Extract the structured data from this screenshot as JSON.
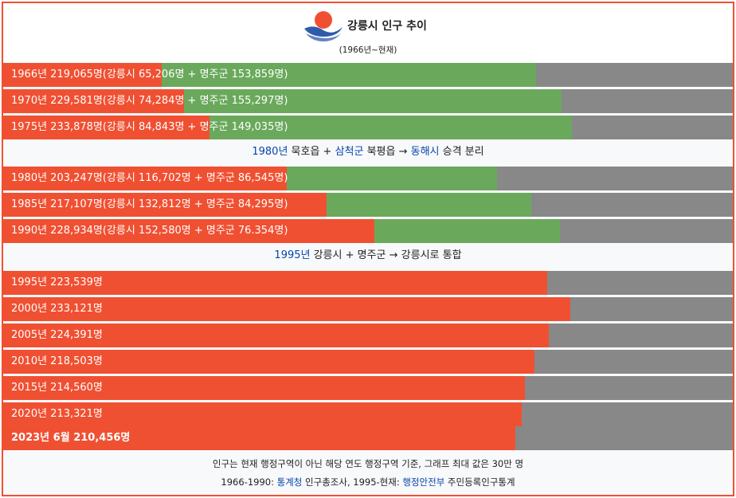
{
  "header": {
    "title": "강릉시 인구 추이",
    "subtitle": "(1966년~현재)"
  },
  "colors": {
    "border": "#f05032",
    "gangneung": "#f05032",
    "myeongju": "#6aa95c",
    "remainder": "#888888",
    "link": "#0645ad"
  },
  "rows_top": [
    {
      "label": "1966년 219,065명(강릉시 65,206명 + 명주군 153,859명)"
    },
    {
      "label": "1970년 229,581명(강릉시 74,284명 + 명주군 155,297명)"
    },
    {
      "label": "1975년 233,878명(강릉시 84,843명 + 명주군 149,035명)"
    }
  ],
  "note_1980": {
    "year": "1980년",
    "text_a": " 묵호읍 + ",
    "county": "삼척군",
    "text_b": " 북평읍 → ",
    "city": "동해시",
    "text_c": " 승격 분리"
  },
  "rows_mid": [
    {
      "label": "1980년 203,247명(강릉시 116,702명 + 명주군 86,545명)"
    },
    {
      "label": "1985년 217,107명(강릉시 132,812명 + 명주군 84,295명)"
    },
    {
      "label": "1990년 228,934명(강릉시 152,580명 + 명주군 76.354명)"
    }
  ],
  "note_1995": {
    "year": "1995년",
    "text": " 강릉시 + 명주군 → 강릉시로 통합"
  },
  "rows_bottom": [
    {
      "label": "1995년 223,539명"
    },
    {
      "label": "2000년 233,121명"
    },
    {
      "label": "2005년 224,391명"
    },
    {
      "label": "2010년 218,503명"
    },
    {
      "label": "2015년 214,560명"
    },
    {
      "label": "2020년 213,321명"
    },
    {
      "label": "2023년 6월 210,456명"
    }
  ],
  "footer": {
    "line1": "인구는 현재 행정구역이 아닌 해당 연도 행정구역 기준, 그래프 최대 값은 30만 명",
    "line2_a": "1966-1990: ",
    "source1": "통계청",
    "line2_b": " 인구총조사, 1995-현재: ",
    "source2": "행정안전부",
    "line2_c": " 주민등록인구통계"
  },
  "chart_data": {
    "type": "bar",
    "title": "강릉시 인구 추이",
    "subtitle": "(1966년~현재)",
    "xlim": [
      0,
      300000
    ],
    "categories": [
      "1966년",
      "1970년",
      "1975년",
      "1980년",
      "1985년",
      "1990년",
      "1995년",
      "2000년",
      "2005년",
      "2010년",
      "2015년",
      "2020년",
      "2023년 6월"
    ],
    "series": [
      {
        "name": "강릉시",
        "values": [
          65206,
          74284,
          84843,
          116702,
          132812,
          152580,
          223539,
          233121,
          224391,
          218503,
          214560,
          213321,
          210456
        ]
      },
      {
        "name": "명주군",
        "values": [
          153859,
          155297,
          149035,
          86545,
          84295,
          76354,
          0,
          0,
          0,
          0,
          0,
          0,
          0
        ]
      }
    ],
    "totals": [
      219065,
      229581,
      233878,
      203247,
      217107,
      228934,
      223539,
      233121,
      224391,
      218503,
      214560,
      213321,
      210456
    ]
  }
}
